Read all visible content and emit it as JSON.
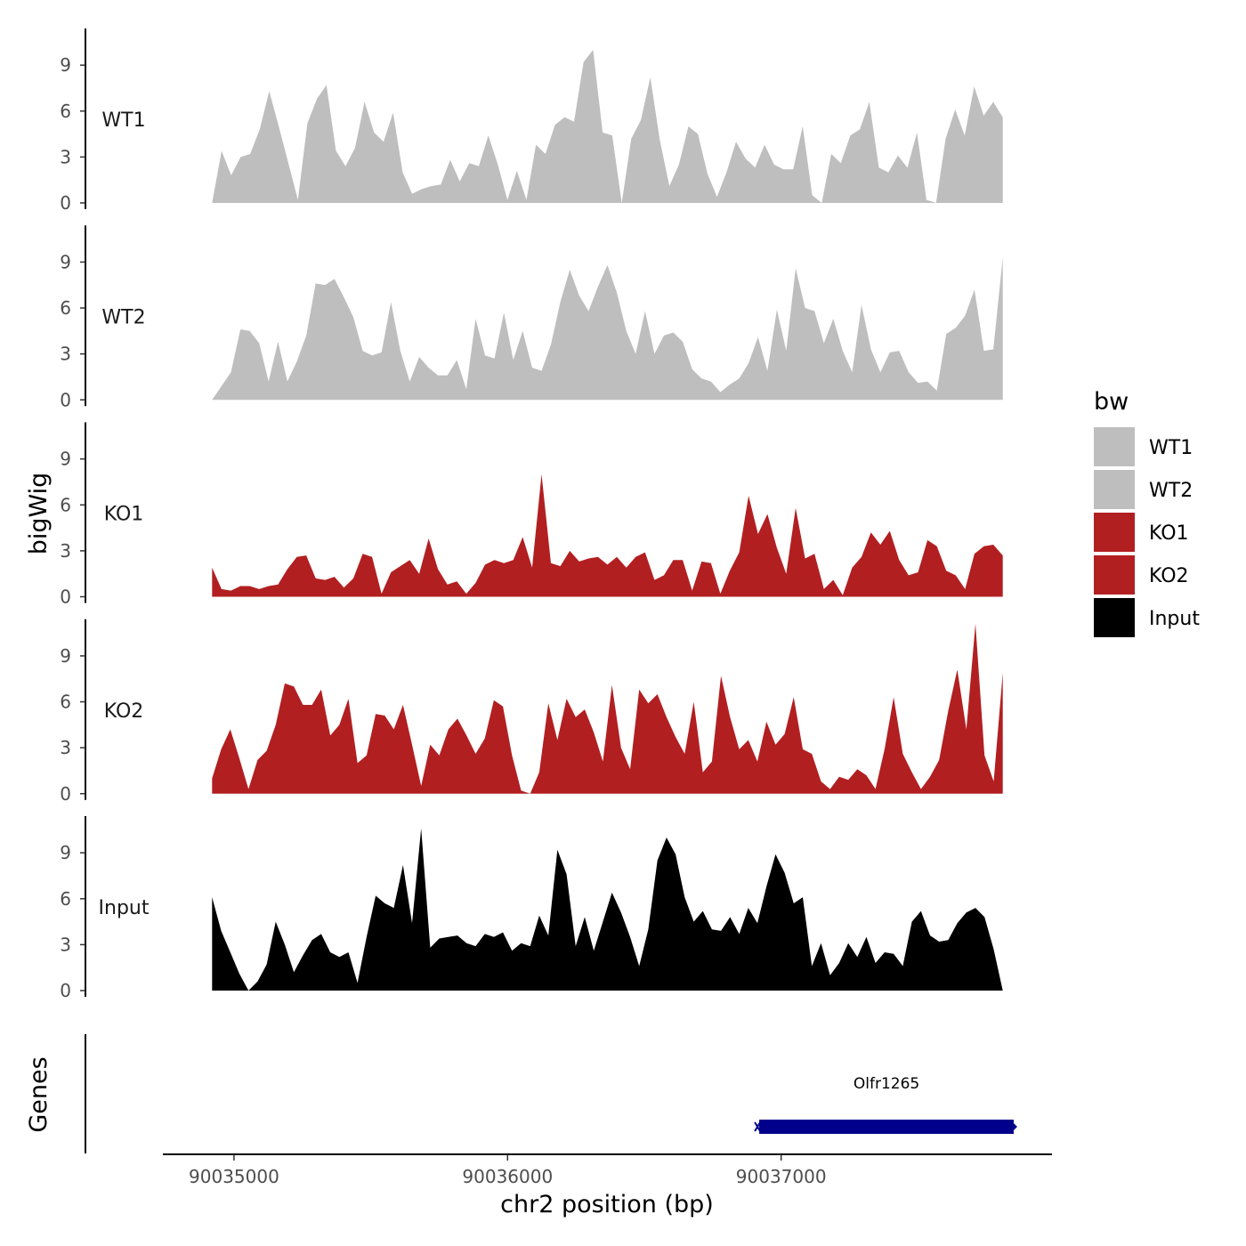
{
  "chart_data": {
    "type": "area",
    "ylabel": "bigWig",
    "xlabel": "chr2 position (bp)",
    "gene_panel_label": "Genes",
    "ylim": [
      0,
      11
    ],
    "y_ticks": [
      0,
      3,
      6,
      9
    ],
    "x_range": [
      90034740,
      90037990
    ],
    "x_ticks": [
      90035000,
      90036000,
      90037000
    ],
    "x_tick_labels": [
      "90035000",
      "90036000",
      "90037000"
    ],
    "legend": {
      "title": "bw",
      "placement": "right",
      "entries": [
        {
          "label": "WT1",
          "color": "#bebebe"
        },
        {
          "label": "WT2",
          "color": "#bebebe"
        },
        {
          "label": "KO1",
          "color": "#b21f21"
        },
        {
          "label": "KO2",
          "color": "#b21f21"
        },
        {
          "label": "Input",
          "color": "#000000"
        }
      ]
    },
    "series": [
      {
        "name": "WT1",
        "color": "#bebebe",
        "x_start": 90034920,
        "x_end": 90037810,
        "values": [
          0,
          3.4,
          1.8,
          3,
          3.2,
          4.8,
          7.3,
          5,
          2.6,
          0.2,
          5.2,
          6.8,
          7.7,
          3.4,
          2.4,
          3.6,
          6.6,
          4.6,
          4,
          5.9,
          2,
          0.6,
          0.9,
          1.1,
          1.2,
          2.8,
          1.4,
          2.6,
          2.4,
          4.4,
          2.5,
          0.2,
          2.1,
          0.2,
          3.8,
          3.2,
          5.1,
          5.6,
          5.3,
          9.2,
          10,
          4.6,
          4.4,
          0,
          4.2,
          5.4,
          8.2,
          4.1,
          1.1,
          2.5,
          5,
          4.5,
          1.9,
          0.4,
          2,
          4,
          2.9,
          2.3,
          3.8,
          2.5,
          2.2,
          2.2,
          5,
          0.5,
          0,
          3.2,
          2.6,
          4.4,
          4.8,
          6.6,
          2.3,
          2,
          3.1,
          2.3,
          4.6,
          0.2,
          0,
          4.2,
          6.1,
          4.4,
          7.6,
          5.7,
          6.6,
          5.6
        ]
      },
      {
        "name": "WT2",
        "color": "#bebebe",
        "x_start": 90034920,
        "x_end": 90037810,
        "values": [
          0,
          0.9,
          1.8,
          4.6,
          4.5,
          3.7,
          1.2,
          3.8,
          1.2,
          2.5,
          4.2,
          7.6,
          7.5,
          7.9,
          6.7,
          5.4,
          3.2,
          2.9,
          3.1,
          6.4,
          3.2,
          1.2,
          2.8,
          2.1,
          1.6,
          1.6,
          2.6,
          0.7,
          5.3,
          2.9,
          2.7,
          5.7,
          2.6,
          4.5,
          2.1,
          1.9,
          3.6,
          6.4,
          8.5,
          6.8,
          5.8,
          7.4,
          8.8,
          7,
          4.5,
          3,
          5.8,
          3,
          4.2,
          4.4,
          3.8,
          2,
          1.4,
          1.2,
          0.5,
          1,
          1.4,
          2.4,
          4.1,
          1.9,
          5.9,
          3.2,
          8.6,
          6,
          5.8,
          3.7,
          5.3,
          3.2,
          1.8,
          6.2,
          3.3,
          1.8,
          3.1,
          3.2,
          1.8,
          1.1,
          1.2,
          0.6,
          4.3,
          4.7,
          5.5,
          7.2,
          3.2,
          3.3,
          9.3
        ]
      },
      {
        "name": "KO1",
        "color": "#b21f21",
        "x_start": 90034920,
        "x_end": 90037810,
        "values": [
          1.9,
          0.5,
          0.4,
          0.7,
          0.7,
          0.5,
          0.7,
          0.8,
          1.8,
          2.6,
          2.7,
          1.2,
          1.1,
          1.3,
          0.6,
          1.2,
          2.8,
          2.6,
          0.2,
          1.6,
          2,
          2.4,
          1.5,
          3.8,
          1.8,
          0.8,
          1,
          0.2,
          0.9,
          2.1,
          2.4,
          2.2,
          2.4,
          3.9,
          1.9,
          8,
          2.2,
          2,
          3,
          2.3,
          2.5,
          2.6,
          2.1,
          2.6,
          1.9,
          2.6,
          2.9,
          1.1,
          1.4,
          2.4,
          2.4,
          0.4,
          2.3,
          2.2,
          0.2,
          1.7,
          2.9,
          6.6,
          4.1,
          5.4,
          3.2,
          1.5,
          5.8,
          2.5,
          2.8,
          0.5,
          1.1,
          0.1,
          1.9,
          2.6,
          4.2,
          3.4,
          4.3,
          2.4,
          1.4,
          1.6,
          3.7,
          3.3,
          1.7,
          1.4,
          0.5,
          2.8,
          3.3,
          3.4,
          2.7
        ]
      },
      {
        "name": "KO2",
        "color": "#b21f21",
        "x_start": 90034920,
        "x_end": 90037810,
        "values": [
          1,
          2.9,
          4.2,
          2.3,
          0.3,
          2.2,
          2.8,
          4.5,
          7.2,
          7,
          5.8,
          5.8,
          6.8,
          3.8,
          4.5,
          6.2,
          2,
          2.5,
          5.2,
          5.1,
          4.2,
          5.8,
          3.2,
          0.5,
          3.2,
          2.5,
          4.2,
          4.9,
          3.8,
          2.6,
          3.6,
          6.1,
          5.7,
          2.5,
          0.2,
          0,
          1.4,
          5.9,
          3.5,
          6.2,
          5,
          5.5,
          4,
          2.1,
          7.1,
          3,
          1.6,
          6.8,
          5.9,
          6.5,
          5,
          3.7,
          2.6,
          6,
          1.4,
          2.1,
          7.7,
          5,
          2.9,
          3.5,
          2.1,
          4.7,
          3.2,
          3.9,
          6.3,
          2.9,
          2.6,
          0.8,
          0.3,
          1.1,
          0.9,
          1.6,
          1.2,
          0.3,
          2.9,
          6.3,
          2.6,
          1.4,
          0.3,
          1.1,
          2.2,
          5.4,
          8.1,
          4.2,
          11.1,
          2.5,
          0.8,
          7.9
        ]
      },
      {
        "name": "Input",
        "color": "#000000",
        "x_start": 90034920,
        "x_end": 90037810,
        "values": [
          6.1,
          3.9,
          2.5,
          1.1,
          0,
          0.6,
          1.7,
          4.5,
          3,
          1.2,
          2.3,
          3.3,
          3.7,
          2.5,
          2.2,
          2.5,
          0.5,
          3.5,
          6.2,
          5.7,
          5.4,
          8.2,
          4.4,
          10.6,
          2.8,
          3.4,
          3.5,
          3.6,
          3.1,
          2.9,
          3.7,
          3.5,
          3.8,
          2.6,
          3.1,
          2.9,
          4.9,
          3.6,
          9.2,
          7.6,
          2.9,
          4.8,
          2.6,
          4.5,
          6.4,
          5.1,
          3.5,
          1.6,
          4,
          8.5,
          10,
          8.9,
          6.1,
          4.5,
          5.2,
          4,
          3.9,
          4.8,
          3.7,
          5.4,
          4.4,
          6.8,
          8.9,
          7.7,
          5.7,
          6.1,
          1.6,
          3.1,
          1,
          1.8,
          3.1,
          2.2,
          3.5,
          1.8,
          2.5,
          2.4,
          1.6,
          4.5,
          5.2,
          3.6,
          3.2,
          3.3,
          4.4,
          5.1,
          5.4,
          4.8,
          2.7,
          0
        ]
      }
    ],
    "genes": [
      {
        "name": "Olfr1265",
        "start": 90036920,
        "end": 90037850,
        "strand": "+",
        "color": "#00008b"
      }
    ]
  }
}
